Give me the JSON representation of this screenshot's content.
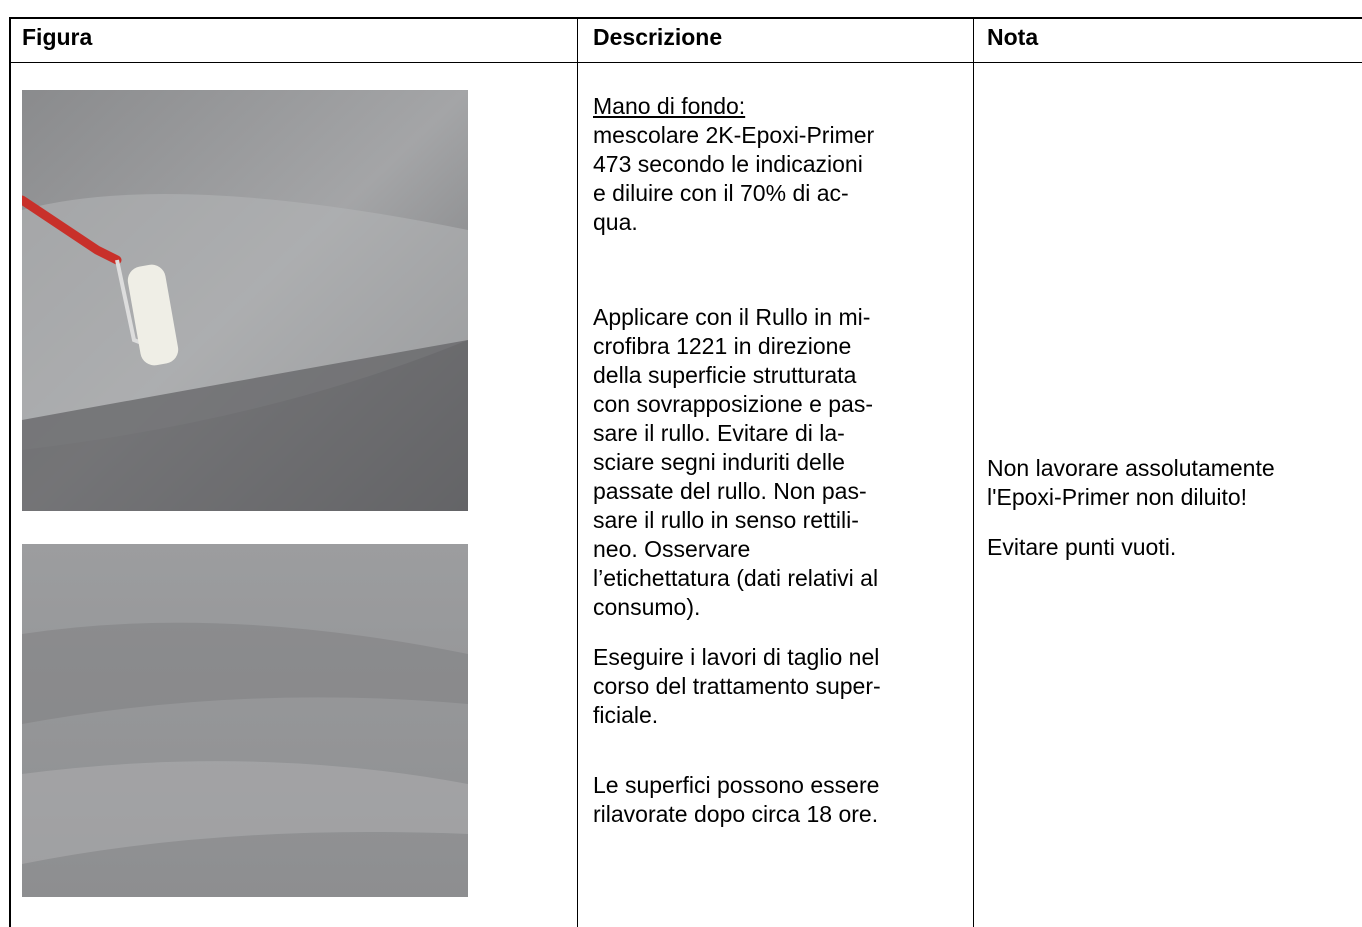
{
  "table": {
    "headers": [
      "Figura",
      "Descrizione",
      "Nota"
    ],
    "description": [
      [
        "Mano di fondo:",
        "mescolare 2K-Epoxi-Primer",
        "473 secondo le indicazioni",
        "e diluire con il 70% di ac-",
        "qua."
      ],
      [
        "Applicare con il Rullo in mi-",
        "crofibra 1221 in direzione",
        "della superficie strutturata",
        "con sovrapposizione e pas-",
        "sare il rullo. Evitare di la-",
        "sciare segni induriti delle",
        "passate del rullo. Non pas-",
        "sare il rullo in senso rettili-",
        "neo. Osservare",
        "l’etichettatura (dati relativi al",
        "consumo)."
      ],
      [
        "Eseguire i lavori di taglio nel",
        "corso del trattamento super-",
        "ficiale."
      ],
      [
        "Le superfici possono essere",
        "rilavorate dopo circa 18 ore."
      ]
    ],
    "note": [
      [
        "Non lavorare assolutamente",
        "l'Epoxi-Primer non diluito!"
      ],
      [
        "Evitare punti vuoti."
      ]
    ]
  }
}
